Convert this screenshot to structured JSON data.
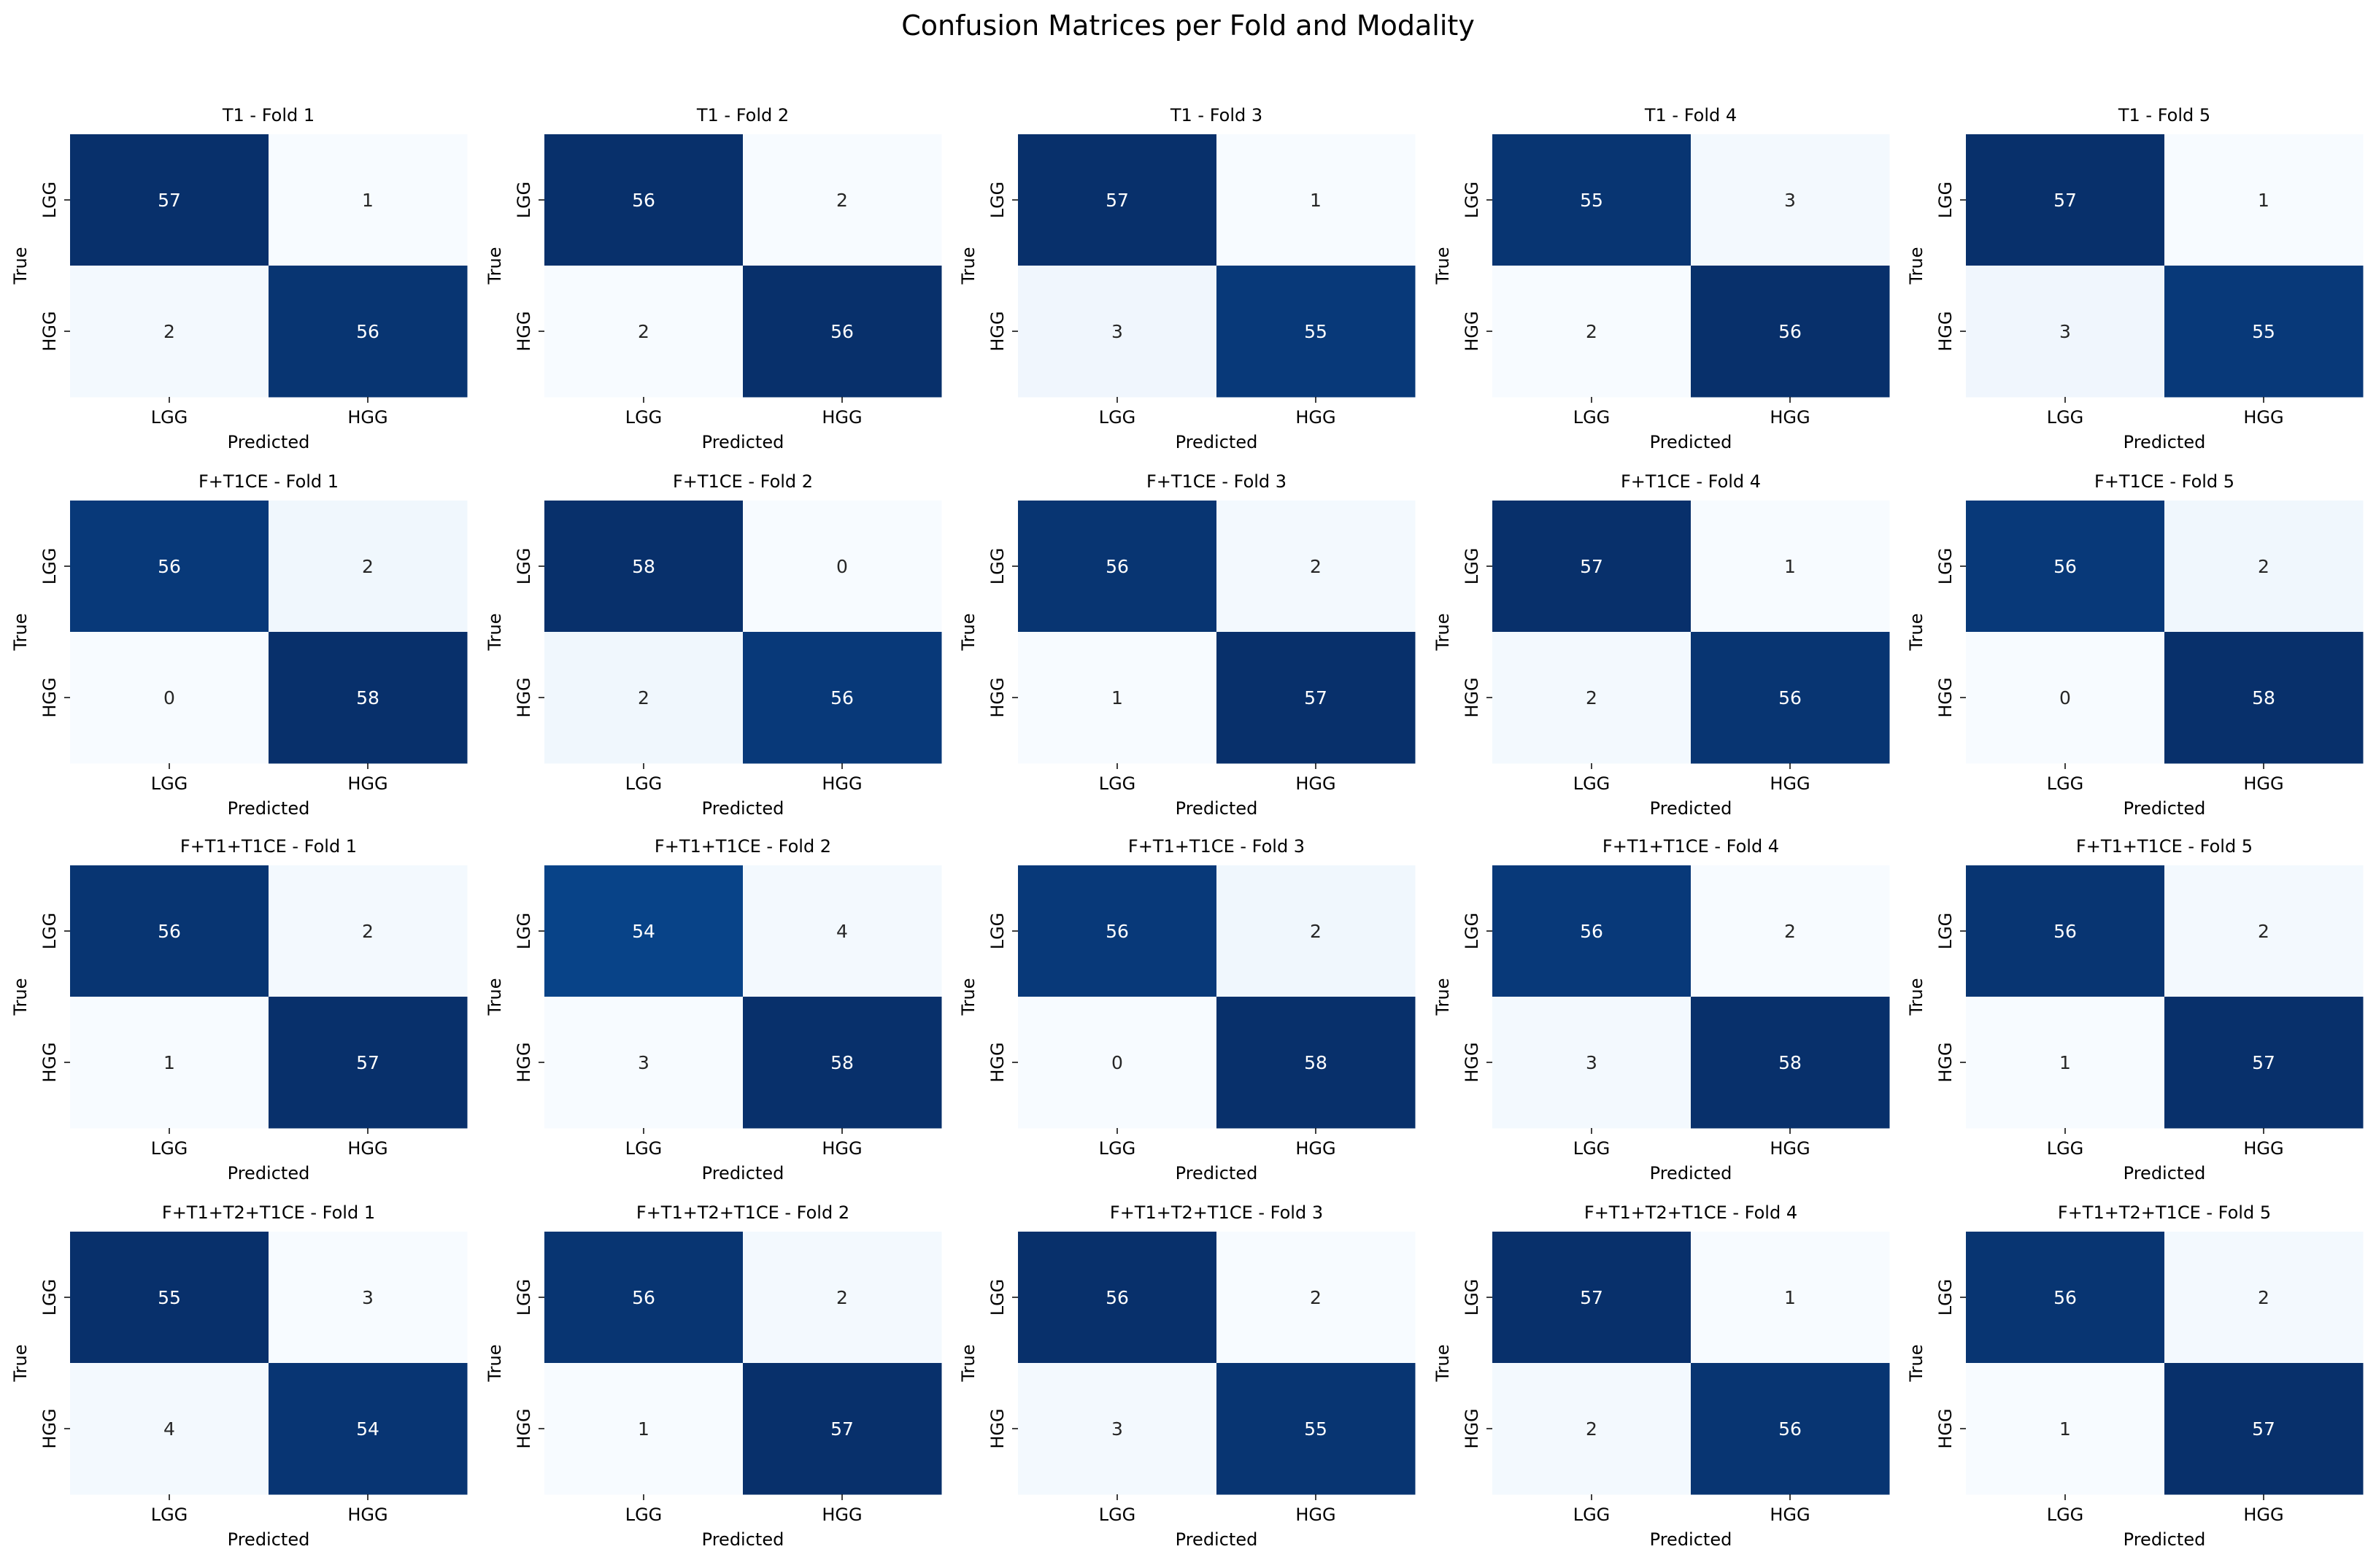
{
  "figure": {
    "title": "Confusion Matrices per Fold and Modality"
  },
  "chart_data": {
    "type": "heatmap",
    "colormap": "Blues",
    "colorbar": false,
    "grid": false,
    "class_labels": [
      "LGG",
      "HGG"
    ],
    "xlabel": "Predicted",
    "ylabel": "True",
    "modalities": [
      "T1",
      "F+T1CE",
      "F+T1+T1CE",
      "F+T1+T2+T1CE"
    ],
    "folds": [
      "Fold 1",
      "Fold 2",
      "Fold 3",
      "Fold 4",
      "Fold 5"
    ],
    "matrices": [
      {
        "title": "T1 - Fold 1",
        "values": [
          [
            57,
            1
          ],
          [
            2,
            56
          ]
        ]
      },
      {
        "title": "T1 - Fold 2",
        "values": [
          [
            56,
            2
          ],
          [
            2,
            56
          ]
        ]
      },
      {
        "title": "T1 - Fold 3",
        "values": [
          [
            57,
            1
          ],
          [
            3,
            55
          ]
        ]
      },
      {
        "title": "T1 - Fold 4",
        "values": [
          [
            55,
            3
          ],
          [
            2,
            56
          ]
        ]
      },
      {
        "title": "T1 - Fold 5",
        "values": [
          [
            57,
            1
          ],
          [
            3,
            55
          ]
        ]
      },
      {
        "title": "F+T1CE - Fold 1",
        "values": [
          [
            56,
            2
          ],
          [
            0,
            58
          ]
        ]
      },
      {
        "title": "F+T1CE - Fold 2",
        "values": [
          [
            58,
            0
          ],
          [
            2,
            56
          ]
        ]
      },
      {
        "title": "F+T1CE - Fold 3",
        "values": [
          [
            56,
            2
          ],
          [
            1,
            57
          ]
        ]
      },
      {
        "title": "F+T1CE - Fold 4",
        "values": [
          [
            57,
            1
          ],
          [
            2,
            56
          ]
        ]
      },
      {
        "title": "F+T1CE - Fold 5",
        "values": [
          [
            56,
            2
          ],
          [
            0,
            58
          ]
        ]
      },
      {
        "title": "F+T1+T1CE - Fold 1",
        "values": [
          [
            56,
            2
          ],
          [
            1,
            57
          ]
        ]
      },
      {
        "title": "F+T1+T1CE - Fold 2",
        "values": [
          [
            54,
            4
          ],
          [
            3,
            58
          ]
        ]
      },
      {
        "title": "F+T1+T1CE - Fold 3",
        "values": [
          [
            56,
            2
          ],
          [
            0,
            58
          ]
        ]
      },
      {
        "title": "F+T1+T1CE - Fold 4",
        "values": [
          [
            56,
            2
          ],
          [
            3,
            58
          ]
        ]
      },
      {
        "title": "F+T1+T1CE - Fold 5",
        "values": [
          [
            56,
            2
          ],
          [
            1,
            57
          ]
        ]
      },
      {
        "title": "F+T1+T2+T1CE - Fold 1",
        "values": [
          [
            55,
            3
          ],
          [
            4,
            54
          ]
        ]
      },
      {
        "title": "F+T1+T2+T1CE - Fold 2",
        "values": [
          [
            56,
            2
          ],
          [
            1,
            57
          ]
        ]
      },
      {
        "title": "F+T1+T2+T1CE - Fold 3",
        "values": [
          [
            56,
            2
          ],
          [
            3,
            55
          ]
        ]
      },
      {
        "title": "F+T1+T2+T1CE - Fold 4",
        "values": [
          [
            57,
            1
          ],
          [
            2,
            56
          ]
        ]
      },
      {
        "title": "F+T1+T2+T1CE - Fold 5",
        "values": [
          [
            56,
            2
          ],
          [
            1,
            57
          ]
        ]
      }
    ]
  }
}
